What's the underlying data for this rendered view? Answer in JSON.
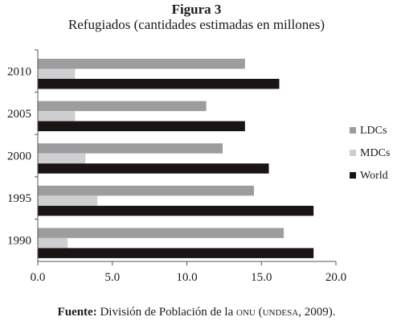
{
  "figure": {
    "label": "Figura 3",
    "title": "Refugiados (cantidades estimadas en millones)"
  },
  "caption": {
    "lead": "Fuente:",
    "text_before": "División de Población de la",
    "org": "onu",
    "paren_open": "(",
    "org2": "undesa",
    "text_after": ", 2009)."
  },
  "chart_data": {
    "type": "bar",
    "orientation": "horizontal",
    "categories": [
      "2010",
      "2005",
      "2000",
      "1995",
      "1990"
    ],
    "series": [
      {
        "name": "LDCs",
        "color": "#9d9d9f",
        "values": [
          13.9,
          11.3,
          12.4,
          14.5,
          16.5
        ]
      },
      {
        "name": "MDCs",
        "color": "#cfcfd1",
        "values": [
          2.5,
          2.5,
          3.2,
          4.0,
          2.0
        ]
      },
      {
        "name": "World",
        "color": "#1b1414",
        "values": [
          16.2,
          13.9,
          15.5,
          18.5,
          18.5
        ]
      }
    ],
    "xlim": [
      0,
      20
    ],
    "xticks": [
      "0.0",
      "5.0",
      "10.0",
      "15.0",
      "20.0"
    ],
    "xlabel": "",
    "ylabel": "",
    "grid": false,
    "legend_position": "right"
  }
}
